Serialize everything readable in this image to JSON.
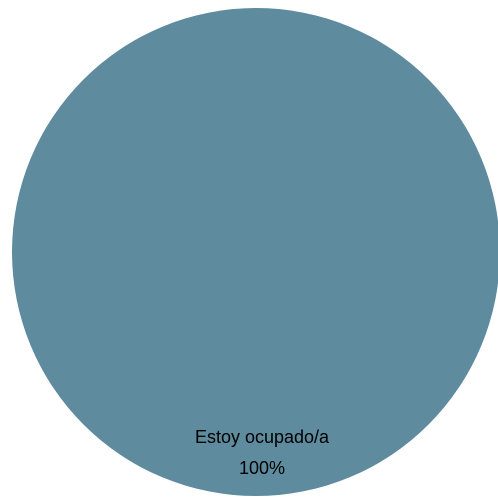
{
  "chart_data": {
    "type": "pie",
    "slices": [
      {
        "label": "Estoy ocupado/a",
        "value": 100,
        "percent_label": "100%",
        "color": "#5e8b9e"
      }
    ],
    "legend": "none"
  }
}
